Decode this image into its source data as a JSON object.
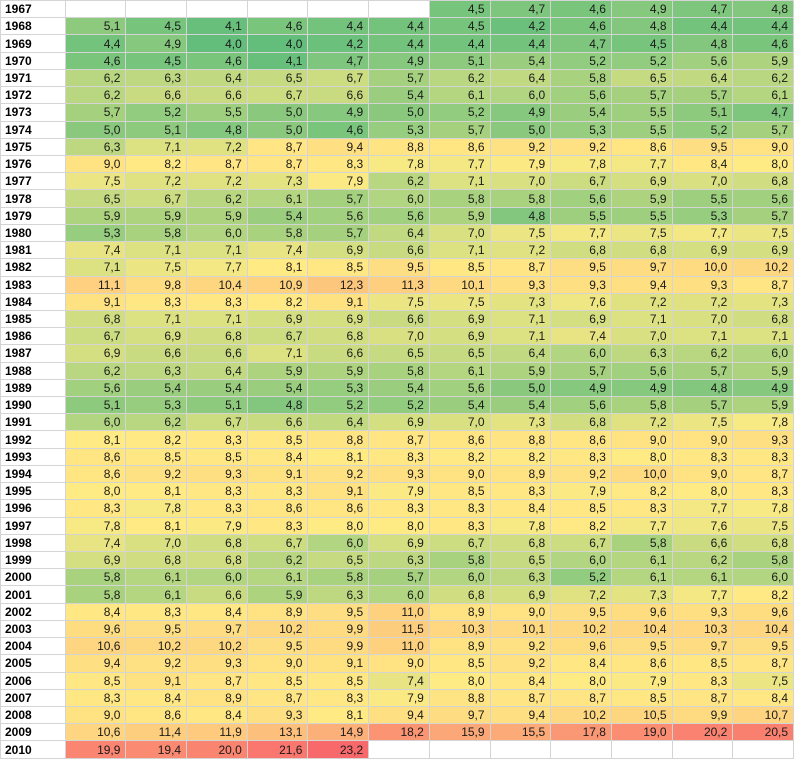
{
  "sheet": {
    "color_scale": {
      "low": "#63BE7B",
      "mid": "#FFEB84",
      "high": "#F8696B",
      "min": 4.0,
      "mid_value": 8.0,
      "max": 23.2
    },
    "rows": [
      {
        "year": "1967",
        "values": [
          "",
          "",
          "",
          "",
          "",
          "",
          "4,5",
          "4,7",
          "4,6",
          "4,9",
          "4,7",
          "4,8"
        ]
      },
      {
        "year": "1968",
        "values": [
          "5,1",
          "4,5",
          "4,1",
          "4,6",
          "4,4",
          "4,4",
          "4,5",
          "4,2",
          "4,6",
          "4,8",
          "4,4",
          "4,4"
        ]
      },
      {
        "year": "1969",
        "values": [
          "4,4",
          "4,9",
          "4,0",
          "4,0",
          "4,2",
          "4,4",
          "4,4",
          "4,4",
          "4,7",
          "4,5",
          "4,8",
          "4,6"
        ]
      },
      {
        "year": "1970",
        "values": [
          "4,6",
          "4,5",
          "4,6",
          "4,1",
          "4,7",
          "4,9",
          "5,1",
          "5,4",
          "5,2",
          "5,2",
          "5,6",
          "5,9"
        ]
      },
      {
        "year": "1971",
        "values": [
          "6,2",
          "6,3",
          "6,4",
          "6,5",
          "6,7",
          "5,7",
          "6,2",
          "6,4",
          "5,8",
          "6,5",
          "6,4",
          "6,2"
        ]
      },
      {
        "year": "1972",
        "values": [
          "6,2",
          "6,6",
          "6,6",
          "6,7",
          "6,6",
          "5,4",
          "6,1",
          "6,0",
          "5,6",
          "5,7",
          "5,7",
          "6,1"
        ]
      },
      {
        "year": "1973",
        "values": [
          "5,7",
          "5,2",
          "5,5",
          "5,0",
          "4,9",
          "5,0",
          "5,2",
          "4,9",
          "5,4",
          "5,5",
          "5,1",
          "4,7"
        ]
      },
      {
        "year": "1974",
        "values": [
          "5,0",
          "5,1",
          "4,8",
          "5,0",
          "4,6",
          "5,3",
          "5,7",
          "5,0",
          "5,3",
          "5,5",
          "5,2",
          "5,7"
        ]
      },
      {
        "year": "1975",
        "values": [
          "6,3",
          "7,1",
          "7,2",
          "8,7",
          "9,4",
          "8,8",
          "8,6",
          "9,2",
          "9,2",
          "8,6",
          "9,5",
          "9,0"
        ]
      },
      {
        "year": "1976",
        "values": [
          "9,0",
          "8,2",
          "8,7",
          "8,7",
          "8,3",
          "7,8",
          "7,7",
          "7,9",
          "7,8",
          "7,7",
          "8,4",
          "8,0"
        ]
      },
      {
        "year": "1977",
        "values": [
          "7,5",
          "7,2",
          "7,2",
          "7,3",
          "7,9",
          "6,2",
          "7,1",
          "7,0",
          "6,7",
          "6,9",
          "7,0",
          "6,8"
        ]
      },
      {
        "year": "1978",
        "values": [
          "6,5",
          "6,7",
          "6,2",
          "6,1",
          "5,7",
          "6,0",
          "5,8",
          "5,8",
          "5,6",
          "5,9",
          "5,5",
          "5,6"
        ]
      },
      {
        "year": "1979",
        "values": [
          "5,9",
          "5,9",
          "5,9",
          "5,4",
          "5,6",
          "5,6",
          "5,9",
          "4,8",
          "5,5",
          "5,5",
          "5,3",
          "5,7"
        ]
      },
      {
        "year": "1980",
        "values": [
          "5,3",
          "5,8",
          "6,0",
          "5,8",
          "5,7",
          "6,4",
          "7,0",
          "7,5",
          "7,7",
          "7,5",
          "7,7",
          "7,5"
        ]
      },
      {
        "year": "1981",
        "values": [
          "7,4",
          "7,1",
          "7,1",
          "7,4",
          "6,9",
          "6,6",
          "7,1",
          "7,2",
          "6,8",
          "6,8",
          "6,9",
          "6,9"
        ]
      },
      {
        "year": "1982",
        "values": [
          "7,1",
          "7,5",
          "7,7",
          "8,1",
          "8,5",
          "9,5",
          "8,5",
          "8,7",
          "9,5",
          "9,7",
          "10,0",
          "10,2"
        ]
      },
      {
        "year": "1983",
        "values": [
          "11,1",
          "9,8",
          "10,4",
          "10,9",
          "12,3",
          "11,3",
          "10,1",
          "9,3",
          "9,3",
          "9,4",
          "9,3",
          "8,7"
        ]
      },
      {
        "year": "1984",
        "values": [
          "9,1",
          "8,3",
          "8,3",
          "8,2",
          "9,1",
          "7,5",
          "7,5",
          "7,3",
          "7,6",
          "7,2",
          "7,2",
          "7,3"
        ]
      },
      {
        "year": "1985",
        "values": [
          "6,8",
          "7,1",
          "7,1",
          "6,9",
          "6,9",
          "6,6",
          "6,9",
          "7,1",
          "6,9",
          "7,1",
          "7,0",
          "6,8"
        ]
      },
      {
        "year": "1986",
        "values": [
          "6,7",
          "6,9",
          "6,8",
          "6,7",
          "6,8",
          "7,0",
          "6,9",
          "7,1",
          "7,4",
          "7,0",
          "7,1",
          "7,1"
        ]
      },
      {
        "year": "1987",
        "values": [
          "6,9",
          "6,6",
          "6,6",
          "7,1",
          "6,6",
          "6,5",
          "6,5",
          "6,4",
          "6,0",
          "6,3",
          "6,2",
          "6,0"
        ]
      },
      {
        "year": "1988",
        "values": [
          "6,2",
          "6,3",
          "6,4",
          "5,9",
          "5,9",
          "5,8",
          "6,1",
          "5,9",
          "5,7",
          "5,6",
          "5,7",
          "5,9"
        ]
      },
      {
        "year": "1989",
        "values": [
          "5,6",
          "5,4",
          "5,4",
          "5,4",
          "5,3",
          "5,4",
          "5,6",
          "5,0",
          "4,9",
          "4,9",
          "4,8",
          "4,9"
        ]
      },
      {
        "year": "1990",
        "values": [
          "5,1",
          "5,3",
          "5,1",
          "4,8",
          "5,2",
          "5,2",
          "5,4",
          "5,4",
          "5,6",
          "5,8",
          "5,7",
          "5,9"
        ]
      },
      {
        "year": "1991",
        "values": [
          "6,0",
          "6,2",
          "6,7",
          "6,6",
          "6,4",
          "6,9",
          "7,0",
          "7,3",
          "6,8",
          "7,2",
          "7,5",
          "7,8"
        ]
      },
      {
        "year": "1992",
        "values": [
          "8,1",
          "8,2",
          "8,3",
          "8,5",
          "8,8",
          "8,7",
          "8,6",
          "8,8",
          "8,6",
          "9,0",
          "9,0",
          "9,3"
        ]
      },
      {
        "year": "1993",
        "values": [
          "8,6",
          "8,5",
          "8,5",
          "8,4",
          "8,1",
          "8,3",
          "8,2",
          "8,2",
          "8,3",
          "8,0",
          "8,3",
          "8,3"
        ]
      },
      {
        "year": "1994",
        "values": [
          "8,6",
          "9,2",
          "9,3",
          "9,1",
          "9,2",
          "9,3",
          "9,0",
          "8,9",
          "9,2",
          "10,0",
          "9,0",
          "8,7"
        ]
      },
      {
        "year": "1995",
        "values": [
          "8,0",
          "8,1",
          "8,3",
          "8,3",
          "9,1",
          "7,9",
          "8,5",
          "8,3",
          "7,9",
          "8,2",
          "8,0",
          "8,3"
        ]
      },
      {
        "year": "1996",
        "values": [
          "8,3",
          "7,8",
          "8,3",
          "8,6",
          "8,6",
          "8,3",
          "8,3",
          "8,4",
          "8,5",
          "8,3",
          "7,7",
          "7,8"
        ]
      },
      {
        "year": "1997",
        "values": [
          "7,8",
          "8,1",
          "7,9",
          "8,3",
          "8,0",
          "8,0",
          "8,3",
          "7,8",
          "8,2",
          "7,7",
          "7,6",
          "7,5"
        ]
      },
      {
        "year": "1998",
        "values": [
          "7,4",
          "7,0",
          "6,8",
          "6,7",
          "6,0",
          "6,9",
          "6,7",
          "6,8",
          "6,7",
          "5,8",
          "6,6",
          "6,8"
        ]
      },
      {
        "year": "1999",
        "values": [
          "6,9",
          "6,8",
          "6,8",
          "6,2",
          "6,5",
          "6,3",
          "5,8",
          "6,5",
          "6,0",
          "6,1",
          "6,2",
          "5,8"
        ]
      },
      {
        "year": "2000",
        "values": [
          "5,8",
          "6,1",
          "6,0",
          "6,1",
          "5,8",
          "5,7",
          "6,0",
          "6,3",
          "5,2",
          "6,1",
          "6,1",
          "6,0"
        ]
      },
      {
        "year": "2001",
        "values": [
          "5,8",
          "6,1",
          "6,6",
          "5,9",
          "6,3",
          "6,0",
          "6,8",
          "6,9",
          "7,2",
          "7,3",
          "7,7",
          "8,2"
        ]
      },
      {
        "year": "2002",
        "values": [
          "8,4",
          "8,3",
          "8,4",
          "8,9",
          "9,5",
          "11,0",
          "8,9",
          "9,0",
          "9,5",
          "9,6",
          "9,3",
          "9,6"
        ]
      },
      {
        "year": "2003",
        "values": [
          "9,6",
          "9,5",
          "9,7",
          "10,2",
          "9,9",
          "11,5",
          "10,3",
          "10,1",
          "10,2",
          "10,4",
          "10,3",
          "10,4"
        ]
      },
      {
        "year": "2004",
        "values": [
          "10,6",
          "10,2",
          "10,2",
          "9,5",
          "9,9",
          "11,0",
          "8,9",
          "9,2",
          "9,6",
          "9,5",
          "9,7",
          "9,5"
        ]
      },
      {
        "year": "2005",
        "values": [
          "9,4",
          "9,2",
          "9,3",
          "9,0",
          "9,1",
          "9,0",
          "8,5",
          "9,2",
          "8,4",
          "8,6",
          "8,5",
          "8,7"
        ]
      },
      {
        "year": "2006",
        "values": [
          "8,5",
          "9,1",
          "8,7",
          "8,5",
          "8,5",
          "7,4",
          "8,0",
          "8,4",
          "8,0",
          "7,9",
          "8,3",
          "7,5"
        ]
      },
      {
        "year": "2007",
        "values": [
          "8,3",
          "8,4",
          "8,9",
          "8,7",
          "8,3",
          "7,9",
          "8,8",
          "8,7",
          "8,7",
          "8,5",
          "8,7",
          "8,4"
        ]
      },
      {
        "year": "2008",
        "values": [
          "9,0",
          "8,6",
          "8,4",
          "9,3",
          "8,1",
          "9,4",
          "9,7",
          "9,4",
          "10,2",
          "10,5",
          "9,9",
          "10,7"
        ]
      },
      {
        "year": "2009",
        "values": [
          "10,6",
          "11,4",
          "11,9",
          "13,1",
          "14,9",
          "18,2",
          "15,9",
          "15,5",
          "17,8",
          "19,0",
          "20,2",
          "20,5"
        ]
      },
      {
        "year": "2010",
        "values": [
          "19,9",
          "19,4",
          "20,0",
          "21,6",
          "23,2",
          "",
          "",
          "",
          "",
          "",
          "",
          ""
        ]
      }
    ]
  }
}
